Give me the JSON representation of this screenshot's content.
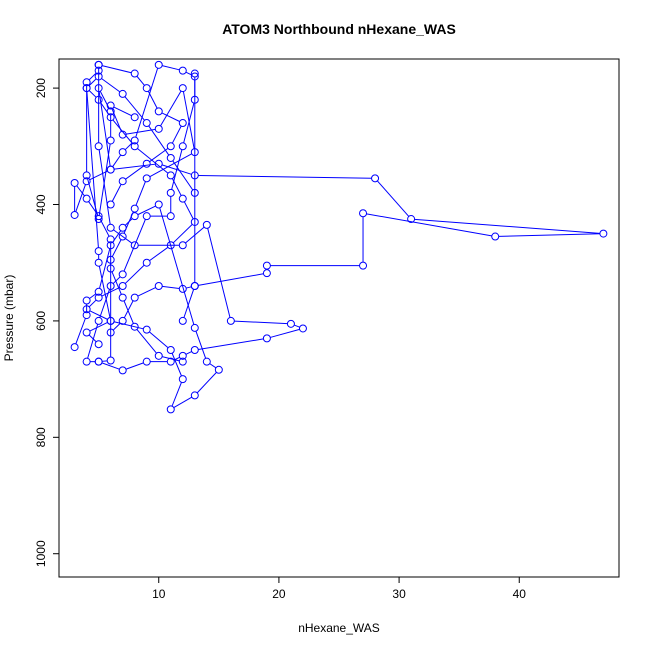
{
  "chart_data": {
    "type": "line",
    "title": "ATOM3 Northbound nHexane_WAS",
    "xlabel": "nHexane_WAS",
    "ylabel": "Pressure (mbar)",
    "xlim": [
      1.7,
      48.3
    ],
    "ylim": [
      1040,
      150
    ],
    "y_reversed": true,
    "xticks": [
      10,
      20,
      30,
      40
    ],
    "yticks": [
      200,
      400,
      600,
      800,
      1000
    ],
    "grid": false,
    "series": [
      {
        "color": "#0000ff",
        "x": [
          5,
          4,
          6,
          4,
          5,
          7,
          9,
          11,
          13,
          12,
          11,
          8,
          6,
          5,
          4,
          5,
          7,
          9,
          11,
          13
        ],
        "y": [
          640,
          620,
          600,
          580,
          560,
          540,
          500,
          470,
          430,
          390,
          350,
          300,
          250,
          220,
          200,
          180,
          210,
          260,
          320,
          380
        ]
      },
      {
        "color": "#0000ff",
        "x": [
          12,
          10,
          8,
          7,
          6,
          6,
          5,
          4,
          3,
          3,
          4,
          6,
          10,
          13,
          28,
          31,
          47,
          38,
          27,
          27,
          19,
          19,
          13,
          12
        ],
        "y": [
          670,
          660,
          610,
          560,
          510,
          460,
          420,
          390,
          363,
          418,
          360,
          340,
          330,
          350,
          355,
          425,
          450,
          455,
          415,
          505,
          505,
          518,
          540,
          600
        ]
      },
      {
        "color": "#0000ff",
        "x": [
          6,
          7,
          9,
          11,
          12,
          10,
          9,
          8,
          5,
          5,
          6,
          8,
          12,
          14,
          16,
          21,
          22,
          19,
          13,
          12,
          11,
          9,
          7,
          5
        ],
        "y": [
          400,
          360,
          330,
          300,
          260,
          240,
          200,
          175,
          160,
          300,
          440,
          470,
          470,
          435,
          600,
          605,
          613,
          630,
          650,
          660,
          670,
          670,
          685,
          670
        ]
      },
      {
        "color": "#0000ff",
        "x": [
          3,
          4,
          4,
          5,
          6,
          7,
          8,
          10,
          13,
          14,
          15,
          13,
          11,
          12,
          11,
          9,
          6,
          5,
          5,
          4
        ],
        "y": [
          645,
          590,
          565,
          550,
          470,
          440,
          420,
          400,
          612,
          670,
          684,
          728,
          752,
          700,
          650,
          615,
          600,
          500,
          480,
          200
        ]
      },
      {
        "color": "#0000ff",
        "x": [
          13,
          13,
          12,
          11,
          11,
          9,
          7,
          6,
          5,
          4,
          5,
          6,
          6,
          7,
          8,
          9,
          13,
          12,
          10,
          7,
          6,
          8
        ],
        "y": [
          175,
          220,
          300,
          380,
          420,
          420,
          520,
          540,
          600,
          670,
          670,
          668,
          495,
          455,
          407,
          355,
          310,
          200,
          270,
          280,
          230,
          250
        ]
      },
      {
        "color": "#0000ff",
        "x": [
          5,
          5,
          4,
          4,
          5,
          6,
          6,
          5,
          6,
          7,
          8,
          10,
          12,
          13,
          13,
          12,
          10,
          8,
          7,
          6
        ],
        "y": [
          160,
          170,
          190,
          350,
          425,
          290,
          240,
          200,
          340,
          310,
          290,
          160,
          170,
          180,
          540,
          545,
          540,
          560,
          600,
          620
        ]
      }
    ]
  }
}
